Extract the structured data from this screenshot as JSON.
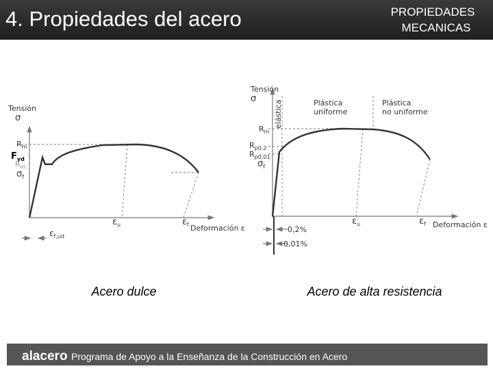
{
  "header": {
    "title": "4. Propiedades del acero",
    "section": [
      "PROPIEDADES",
      "MECANICAS"
    ]
  },
  "diagrams": [
    {
      "caption": "Acero dulce",
      "y_axis": {
        "label": "Tensión",
        "symbol": "σ"
      },
      "x_axis_label": "Deformación ε",
      "labels": {
        "rm": {
          "base": "R",
          "sub": "m"
        },
        "fyd": {
          "base": "F",
          "sub": "yd"
        },
        "rel": {
          "base": "R",
          "sub": "eL"
        },
        "sigma_f": {
          "base": "σ",
          "sub": "f"
        },
        "eps_u": {
          "base": "ε",
          "sub": "u"
        },
        "eps_f": {
          "base": "ε",
          "sub": "f"
        },
        "eps_fud": {
          "base": "ε",
          "sub": "f,ud"
        }
      }
    },
    {
      "caption": "Acero de alta resistencia",
      "y_axis": {
        "label": "Tensión",
        "symbol": "σ"
      },
      "x_axis_label": "Deformación ε",
      "regions": {
        "elastic": "elástica",
        "uniform": [
          "Plástica",
          "uniforme"
        ],
        "non_uniform": [
          "Plástica",
          "no uniforme"
        ]
      },
      "labels": {
        "rm": {
          "base": "R",
          "sub": "m"
        },
        "rp02": {
          "base": "R",
          "sub": "p0,2"
        },
        "rp001": {
          "base": "R",
          "sub": "p0,01"
        },
        "sigma_f": {
          "base": "σ",
          "sub": "f"
        },
        "eps_u": {
          "base": "ε",
          "sub": "u"
        },
        "eps_f": {
          "base": "ε",
          "sub": "f"
        }
      },
      "offsets": [
        "0,2%",
        "0,01%"
      ]
    }
  ],
  "footer": {
    "logo": "alacero",
    "program": "Programa de Apoyo a la Enseñanza de la Construcción en Acero"
  }
}
